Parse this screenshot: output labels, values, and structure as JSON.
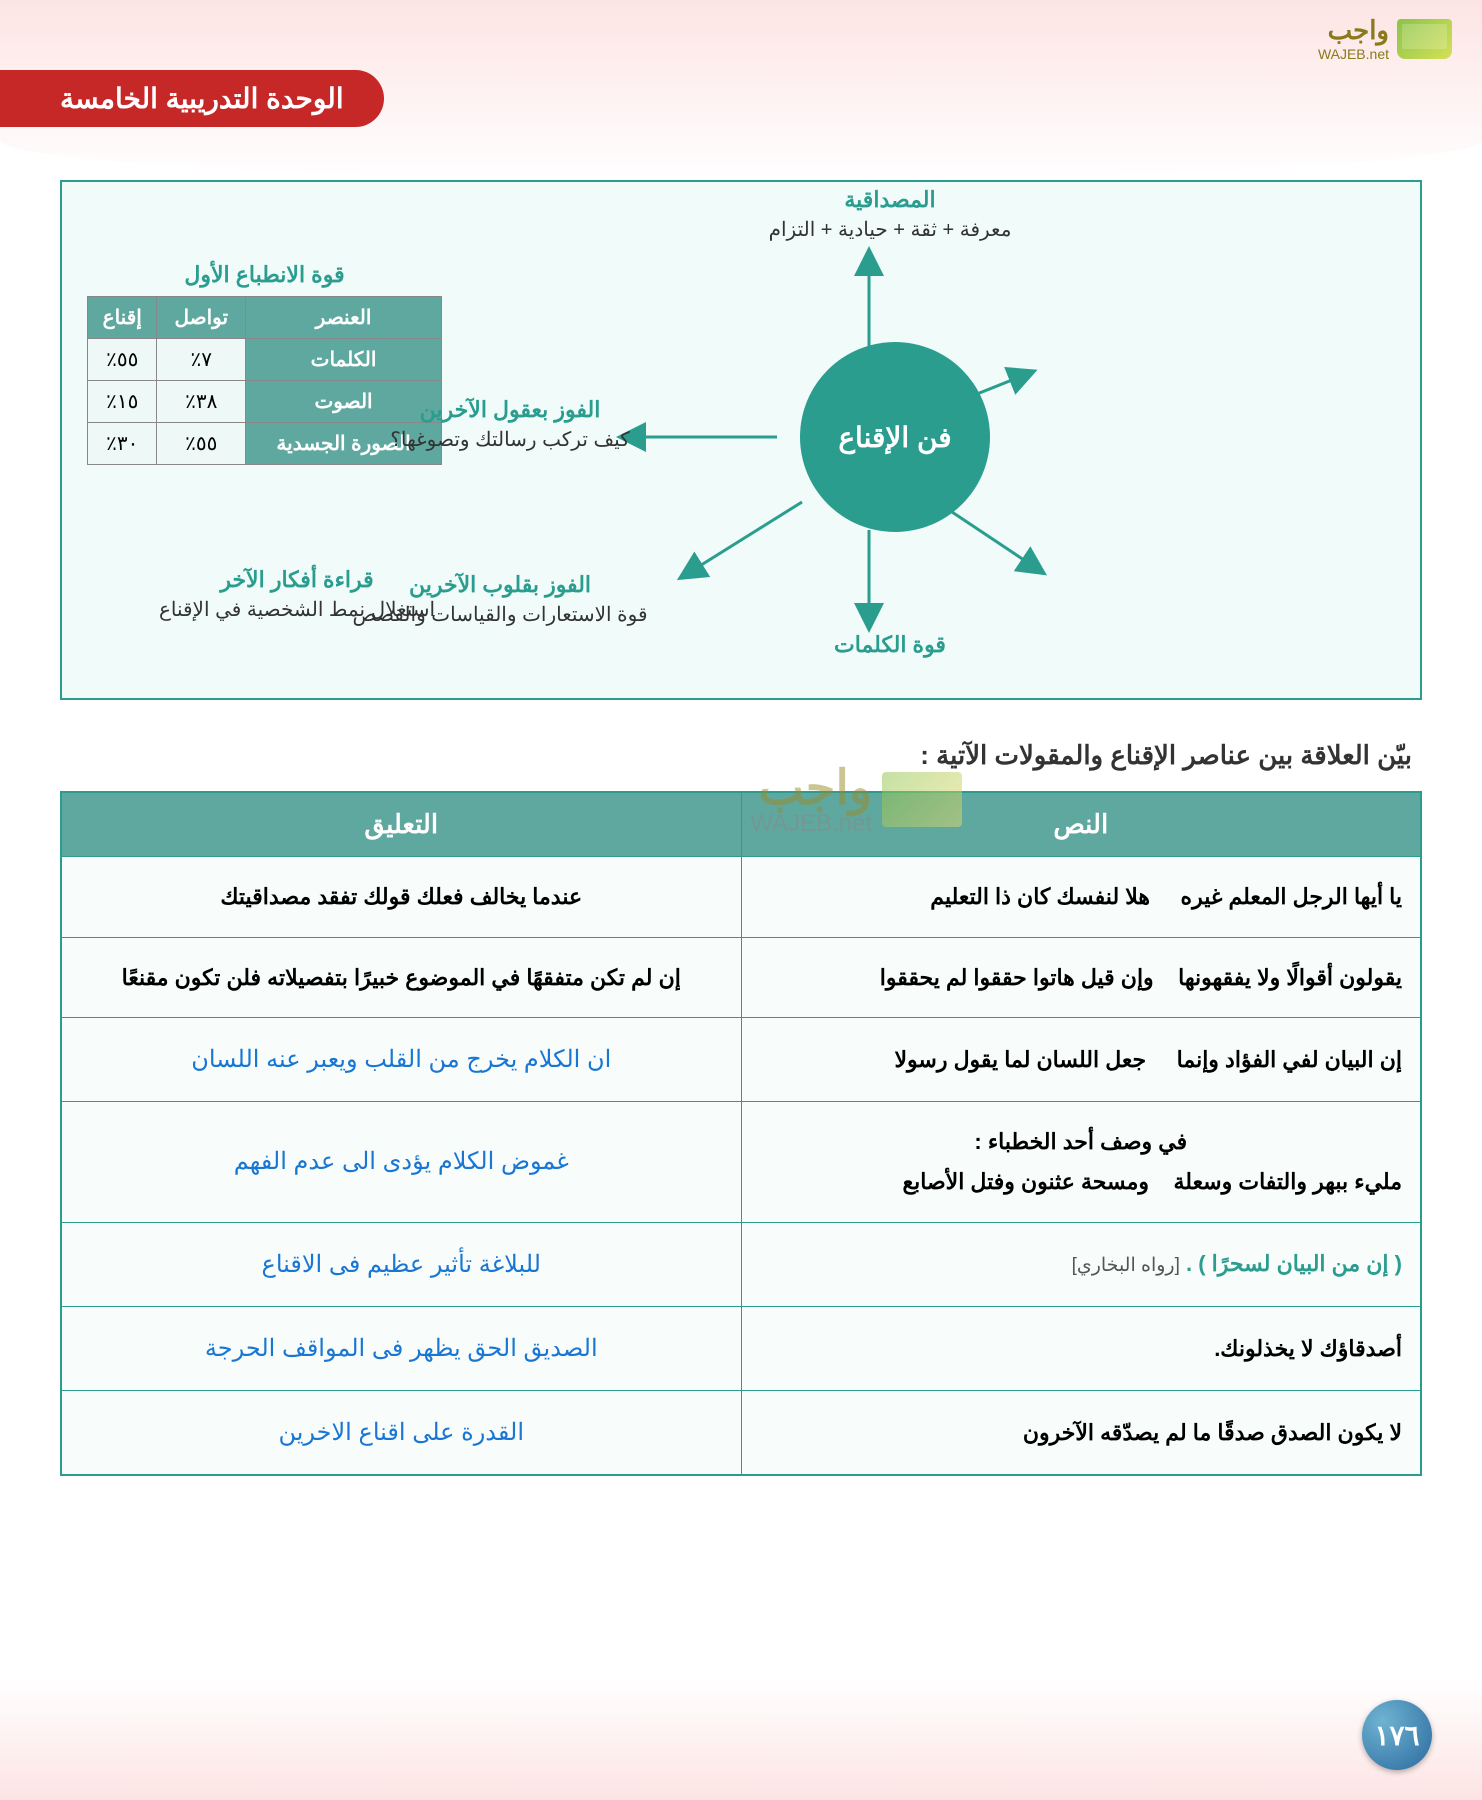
{
  "logo": {
    "main": "واجب",
    "sub": "WAJEB.net"
  },
  "unit_badge": "الوحدة التدريبية الخامسة",
  "diagram": {
    "border_color": "#2a9d8f",
    "bg_color": "#f0fbfa",
    "hub_label": "فن الإقناع",
    "hub_color": "#2a9d8f",
    "spokes": {
      "top": {
        "title": "المصداقية",
        "sub": "معرفة + ثقة + حيادية + التزام"
      },
      "right": {
        "title": "الفوز بعقول الآخرين",
        "sub": "كيف تركب رسالتك وتصوغها؟"
      },
      "bottom_right": {
        "title": "الفوز بقلوب الآخرين",
        "sub": "قوة الاستعارات والقياسات والقصص"
      },
      "bottom": {
        "title": "قوة الكلمات",
        "sub": ""
      },
      "bottom_left": {
        "title": "قراءة أفكار الآخر",
        "sub": "استغلال نمط الشخصية في الإقناع"
      },
      "left_table": {
        "title": "قوة الانطباع الأول",
        "headers": [
          "العنصر",
          "تواصل",
          "إقناع"
        ],
        "rows": [
          [
            "الكلمات",
            "٧٪",
            "٥٥٪"
          ],
          [
            "الصوت",
            "٣٨٪",
            "١٥٪"
          ],
          [
            "الصورة الجسدية",
            "٥٥٪",
            "٣٠٪"
          ]
        ]
      }
    }
  },
  "prompt": "بيّن العلاقة بين عناصر الإقناع والمقولات الآتية :",
  "table": {
    "headers": [
      "النص",
      "التعليق"
    ],
    "header_bg": "#5fa8a0",
    "border_color": "#2a9d8f",
    "answer_color": "#1976d2",
    "rows": [
      {
        "text": "يا أيها الرجل المعلم غيره     هلا لنفسك كان ذا التعليم",
        "comment": "عندما يخالف فعلك قولك تفقد مصداقيتك",
        "ans_style": false
      },
      {
        "text": "يقولون أقوالًا ولا يفقهونها    وإن قيل هاتوا حققوا لم يحققوا",
        "comment": "إن لم تكن متفقهًا في الموضوع خبيرًا بتفصيلاته فلن تكون مقنعًا",
        "ans_style": false
      },
      {
        "text": "إن البيان لفي الفؤاد وإنما     جعل اللسان لما يقول رسولا",
        "comment": "ان الكلام يخرج من القلب ويعبر عنه اللسان",
        "ans_style": true
      },
      {
        "text_pre": "في وصف أحد الخطباء :",
        "text": "مليء ببهر والتفات وسعلة    ومسحة عثنون وفتل الأصابع",
        "comment": "غموض الكلام يؤدى الى عدم الفهم",
        "ans_style": true
      },
      {
        "text_html": true,
        "text": "( إن من البيان لسحرًا ) .",
        "text_post": "[رواه البخاري]",
        "comment": "للبلاغة تأثير عظيم فى الاقناع",
        "ans_style": true
      },
      {
        "text": "أصدقاؤك لا يخذلونك.",
        "comment": "الصديق الحق يظهر فى المواقف الحرجة",
        "ans_style": true
      },
      {
        "text": "لا يكون الصدق صدقًا ما لم يصدّقه الآخرون",
        "comment": "القدرة على اقناع الاخرين",
        "ans_style": true
      }
    ]
  },
  "page_number": "١٧٦",
  "watermark": {
    "main": "واجب",
    "sub": "WAJEB.net"
  }
}
